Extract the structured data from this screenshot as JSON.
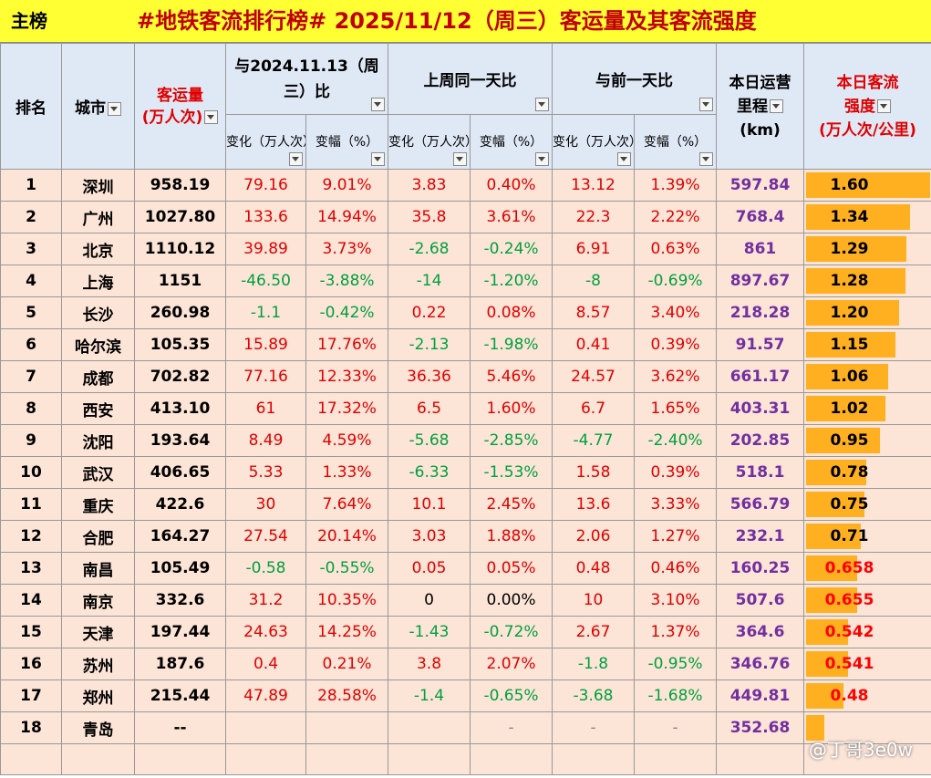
{
  "title": {
    "tab_label": "主榜",
    "text": "#地铁客流排行榜# 2025/11/12（周三）客运量及其客流强度"
  },
  "headers": {
    "rank": "排名",
    "city": "城市",
    "volume_line1": "客运量",
    "volume_line2": "(万人次)",
    "yoy_group": "与2024.11.13（周三）比",
    "wow_group": "上周同一天比",
    "dod_group": "与前一天比",
    "change": "变化（万人次）",
    "pct": "变幅（%）",
    "mileage_line1": "本日运营",
    "mileage_line2": "里程",
    "mileage_line3": "(km)",
    "intensity_line1": "本日客流",
    "intensity_line2": "强度",
    "intensity_line3": "(万人次/公里)"
  },
  "rows": [
    {
      "rank": "1",
      "city": "深圳",
      "volume": "958.19",
      "yoy_c": "79.16",
      "yoy_p": "9.01%",
      "wow_c": "3.83",
      "wow_p": "0.40%",
      "dod_c": "13.12",
      "dod_p": "1.39%",
      "mileage": "597.84",
      "intensity": "1.60",
      "intensity_value": 1.6
    },
    {
      "rank": "2",
      "city": "广州",
      "volume": "1027.80",
      "yoy_c": "133.6",
      "yoy_p": "14.94%",
      "wow_c": "35.8",
      "wow_p": "3.61%",
      "dod_c": "22.3",
      "dod_p": "2.22%",
      "mileage": "768.4",
      "intensity": "1.34",
      "intensity_value": 1.34
    },
    {
      "rank": "3",
      "city": "北京",
      "volume": "1110.12",
      "yoy_c": "39.89",
      "yoy_p": "3.73%",
      "wow_c": "-2.68",
      "wow_p": "-0.24%",
      "dod_c": "6.91",
      "dod_p": "0.63%",
      "mileage": "861",
      "intensity": "1.29",
      "intensity_value": 1.29
    },
    {
      "rank": "4",
      "city": "上海",
      "volume": "1151",
      "yoy_c": "-46.50",
      "yoy_p": "-3.88%",
      "wow_c": "-14",
      "wow_p": "-1.20%",
      "dod_c": "-8",
      "dod_p": "-0.69%",
      "mileage": "897.67",
      "intensity": "1.28",
      "intensity_value": 1.28
    },
    {
      "rank": "5",
      "city": "长沙",
      "volume": "260.98",
      "yoy_c": "-1.1",
      "yoy_p": "-0.42%",
      "wow_c": "0.22",
      "wow_p": "0.08%",
      "dod_c": "8.57",
      "dod_p": "3.40%",
      "mileage": "218.28",
      "intensity": "1.20",
      "intensity_value": 1.2
    },
    {
      "rank": "6",
      "city": "哈尔滨",
      "volume": "105.35",
      "yoy_c": "15.89",
      "yoy_p": "17.76%",
      "wow_c": "-2.13",
      "wow_p": "-1.98%",
      "dod_c": "0.41",
      "dod_p": "0.39%",
      "mileage": "91.57",
      "intensity": "1.15",
      "intensity_value": 1.15
    },
    {
      "rank": "7",
      "city": "成都",
      "volume": "702.82",
      "yoy_c": "77.16",
      "yoy_p": "12.33%",
      "wow_c": "36.36",
      "wow_p": "5.46%",
      "dod_c": "24.57",
      "dod_p": "3.62%",
      "mileage": "661.17",
      "intensity": "1.06",
      "intensity_value": 1.06
    },
    {
      "rank": "8",
      "city": "西安",
      "volume": "413.10",
      "yoy_c": "61",
      "yoy_p": "17.32%",
      "wow_c": "6.5",
      "wow_p": "1.60%",
      "dod_c": "6.7",
      "dod_p": "1.65%",
      "mileage": "403.31",
      "intensity": "1.02",
      "intensity_value": 1.02
    },
    {
      "rank": "9",
      "city": "沈阳",
      "volume": "193.64",
      "yoy_c": "8.49",
      "yoy_p": "4.59%",
      "wow_c": "-5.68",
      "wow_p": "-2.85%",
      "dod_c": "-4.77",
      "dod_p": "-2.40%",
      "mileage": "202.85",
      "intensity": "0.95",
      "intensity_value": 0.95
    },
    {
      "rank": "10",
      "city": "武汉",
      "volume": "406.65",
      "yoy_c": "5.33",
      "yoy_p": "1.33%",
      "wow_c": "-6.33",
      "wow_p": "-1.53%",
      "dod_c": "1.58",
      "dod_p": "0.39%",
      "mileage": "518.1",
      "intensity": "0.78",
      "intensity_value": 0.78
    },
    {
      "rank": "11",
      "city": "重庆",
      "volume": "422.6",
      "yoy_c": "30",
      "yoy_p": "7.64%",
      "wow_c": "10.1",
      "wow_p": "2.45%",
      "dod_c": "13.6",
      "dod_p": "3.33%",
      "mileage": "566.79",
      "intensity": "0.75",
      "intensity_value": 0.75
    },
    {
      "rank": "12",
      "city": "合肥",
      "volume": "164.27",
      "yoy_c": "27.54",
      "yoy_p": "20.14%",
      "wow_c": "3.03",
      "wow_p": "1.88%",
      "dod_c": "2.06",
      "dod_p": "1.27%",
      "mileage": "232.1",
      "intensity": "0.71",
      "intensity_value": 0.71
    },
    {
      "rank": "13",
      "city": "南昌",
      "volume": "105.49",
      "yoy_c": "-0.58",
      "yoy_p": "-0.55%",
      "wow_c": "0.05",
      "wow_p": "0.05%",
      "dod_c": "0.48",
      "dod_p": "0.46%",
      "mileage": "160.25",
      "intensity": "0.658",
      "intensity_value": 0.658
    },
    {
      "rank": "14",
      "city": "南京",
      "volume": "332.6",
      "yoy_c": "31.2",
      "yoy_p": "10.35%",
      "wow_c": "0",
      "wow_p": "0.00%",
      "dod_c": "10",
      "dod_p": "3.10%",
      "mileage": "507.6",
      "intensity": "0.655",
      "intensity_value": 0.655
    },
    {
      "rank": "15",
      "city": "天津",
      "volume": "197.44",
      "yoy_c": "24.63",
      "yoy_p": "14.25%",
      "wow_c": "-1.43",
      "wow_p": "-0.72%",
      "dod_c": "2.67",
      "dod_p": "1.37%",
      "mileage": "364.6",
      "intensity": "0.542",
      "intensity_value": 0.542
    },
    {
      "rank": "16",
      "city": "苏州",
      "volume": "187.6",
      "yoy_c": "0.4",
      "yoy_p": "0.21%",
      "wow_c": "3.8",
      "wow_p": "2.07%",
      "dod_c": "-1.8",
      "dod_p": "-0.95%",
      "mileage": "346.76",
      "intensity": "0.541",
      "intensity_value": 0.541
    },
    {
      "rank": "17",
      "city": "郑州",
      "volume": "215.44",
      "yoy_c": "47.89",
      "yoy_p": "28.58%",
      "wow_c": "-1.4",
      "wow_p": "-0.65%",
      "dod_c": "-3.68",
      "dod_p": "-1.68%",
      "mileage": "449.81",
      "intensity": "0.48",
      "intensity_value": 0.48
    },
    {
      "rank": "18",
      "city": "青岛",
      "volume": "--",
      "yoy_c": "",
      "yoy_p": "",
      "wow_c": "",
      "wow_p": "-",
      "dod_c": "-",
      "dod_p": "-",
      "mileage": "352.68",
      "intensity": "",
      "intensity_value": 0.24
    }
  ],
  "intensity_max": 1.6,
  "watermark": "@丁哥3e0w",
  "colors": {
    "title_bg": "#ffff33",
    "header_bg": "#dfe8f5",
    "row_bg": "#fce4d6",
    "bar": "#ffb020",
    "positive": "#e00000",
    "negative": "#00a040",
    "mileage": "#7030a0"
  }
}
